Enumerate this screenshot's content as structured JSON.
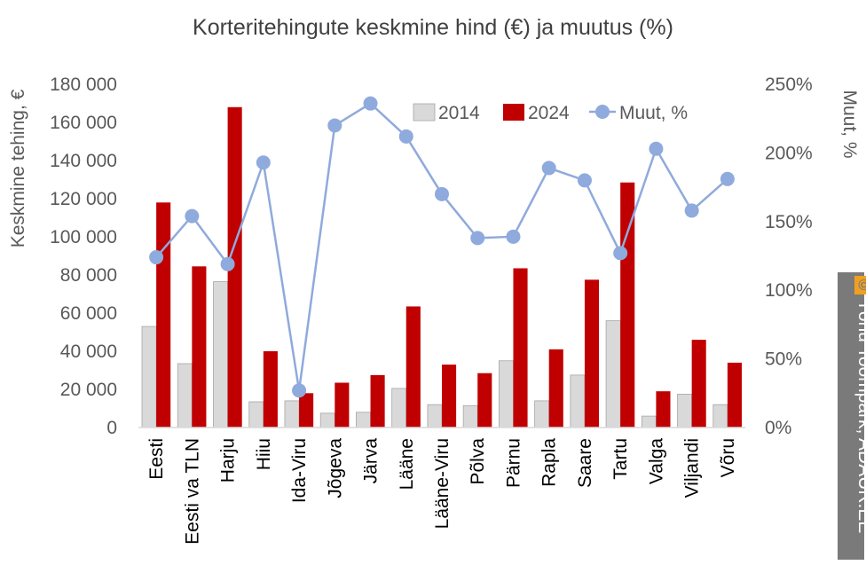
{
  "chart_data": {
    "type": "bar",
    "title": "Korteritehingute keskmine hind (€) ja muutus (%)",
    "ylabel": "Keskmine tehing, €",
    "y2label": "Muut, %",
    "ylim": [
      0,
      180000
    ],
    "y2lim": [
      0,
      250
    ],
    "ytick_labels": [
      "0",
      "20 000",
      "40 000",
      "60 000",
      "80 000",
      "100 000",
      "120 000",
      "140 000",
      "160 000",
      "180 000"
    ],
    "y2tick_labels": [
      "0%",
      "50%",
      "100%",
      "150%",
      "200%",
      "250%"
    ],
    "categories": [
      "Eesti",
      "Eesti va TLN",
      "Harju",
      "Hiiu",
      "Ida-Viru",
      "Jõgeva",
      "Järva",
      "Lääne",
      "Lääne-Viru",
      "Põlva",
      "Pärnu",
      "Rapla",
      "Saare",
      "Tartu",
      "Valga",
      "Viljandi",
      "Võru"
    ],
    "series": [
      {
        "name": "2014",
        "type": "bar",
        "axis": "left",
        "color": "#d9d9d9",
        "values": [
          53000,
          33500,
          76500,
          13500,
          14000,
          7500,
          8000,
          20500,
          12000,
          11500,
          35000,
          14000,
          27500,
          56000,
          6000,
          17500,
          12000
        ]
      },
      {
        "name": "2024",
        "type": "bar",
        "axis": "left",
        "color": "#c00000",
        "values": [
          118000,
          84500,
          168000,
          40000,
          18000,
          23500,
          27500,
          63500,
          33000,
          28500,
          83500,
          41000,
          77500,
          128500,
          19000,
          46000,
          34000
        ]
      },
      {
        "name": "Muut, %",
        "type": "line",
        "axis": "right",
        "color": "#8faadc",
        "values": [
          124,
          154,
          119,
          193,
          27,
          220,
          236,
          212,
          170,
          138,
          139,
          189,
          180,
          127,
          203,
          158,
          181
        ]
      }
    ],
    "legend_position": "top-right",
    "grid": false
  },
  "watermark": {
    "symbol": "©",
    "text": "Tõnu Toompark, ADAUR.EE"
  },
  "colors": {
    "axis_text": "#595959",
    "axis_line": "#d9d9d9",
    "title": "#404040"
  }
}
